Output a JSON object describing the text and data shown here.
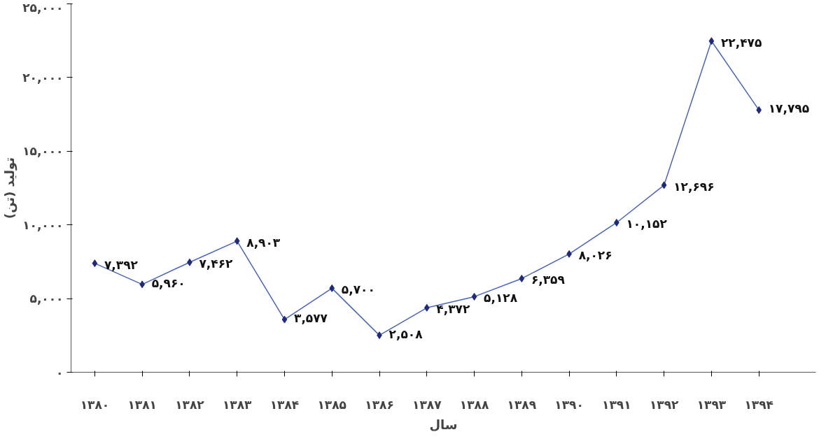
{
  "chart_data": {
    "type": "line",
    "xlabel": "سال",
    "ylabel": "تولید (تن)",
    "categories": [
      "۱۳۸۰",
      "۱۳۸۱",
      "۱۳۸۲",
      "۱۳۸۳",
      "۱۳۸۴",
      "۱۳۸۵",
      "۱۳۸۶",
      "۱۳۸۷",
      "۱۳۸۸",
      "۱۳۸۹",
      "۱۳۹۰",
      "۱۳۹۱",
      "۱۳۹۲",
      "۱۳۹۳",
      "۱۳۹۴"
    ],
    "series": [
      {
        "color": "#1f2a7a",
        "values": [
          7392,
          5960,
          7462,
          8903,
          3577,
          5700,
          2508,
          4372,
          5128,
          6359,
          8026,
          10152,
          12696,
          22475,
          17795
        ],
        "value_labels": [
          "۷,۳۹۲",
          "۵,۹۶۰",
          "۷,۴۶۲",
          "۸,۹۰۳",
          "۳,۵۷۷",
          "۵,۷۰۰",
          "۲,۵۰۸",
          "۴,۳۷۲",
          "۵,۱۲۸",
          "۶,۳۵۹",
          "۸,۰۲۶",
          "۱۰,۱۵۲",
          "۱۲,۶۹۶",
          "۲۲,۴۷۵",
          "۱۷,۷۹۵"
        ]
      }
    ],
    "ylim": [
      0,
      25000
    ],
    "yticks": [
      {
        "value": 0,
        "label": "۰"
      },
      {
        "value": 5000,
        "label": "۵,۰۰۰"
      },
      {
        "value": 10000,
        "label": "۱۰,۰۰۰"
      },
      {
        "value": 15000,
        "label": "۱۵,۰۰۰"
      },
      {
        "value": 20000,
        "label": "۲۰,۰۰۰"
      },
      {
        "value": 25000,
        "label": "۲۵,۰۰۰"
      }
    ],
    "marker": "diamond",
    "grid": false
  }
}
